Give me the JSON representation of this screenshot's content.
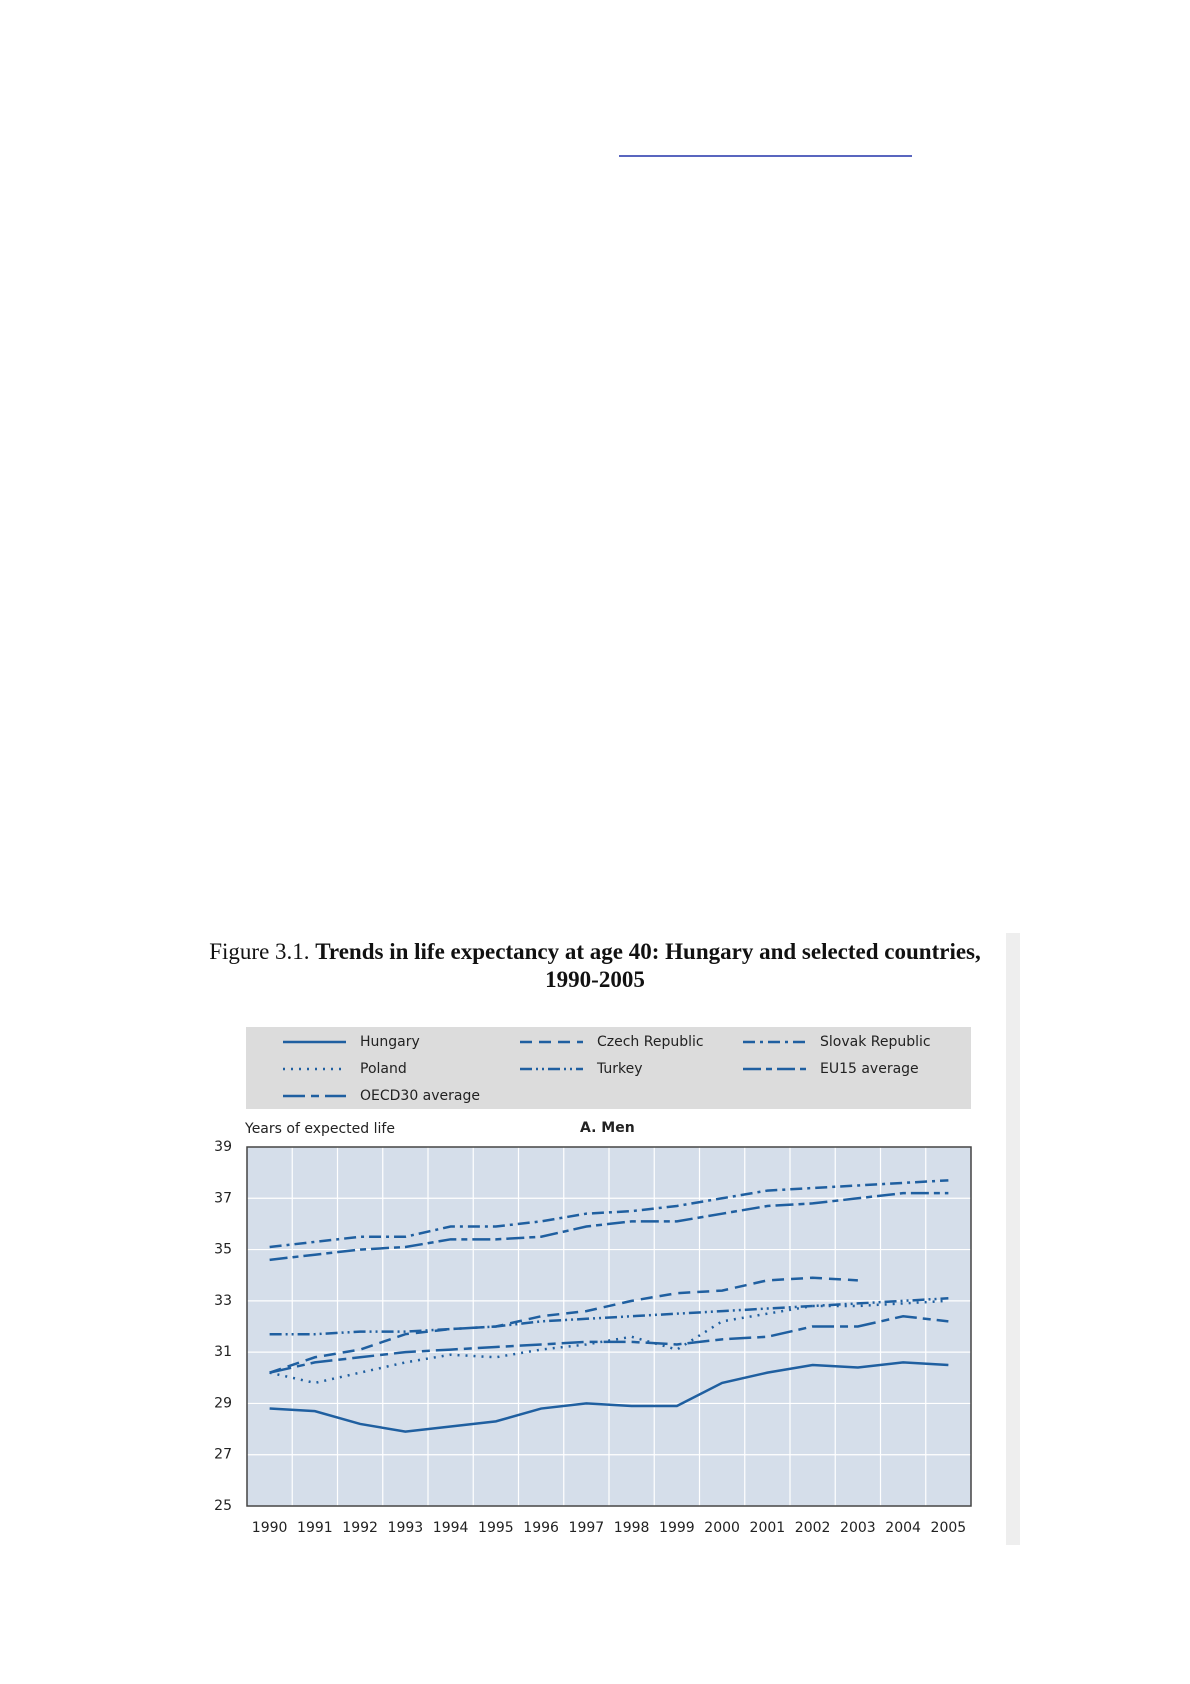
{
  "chart_data": {
    "type": "line",
    "title_label": "Figure 3.1.",
    "title": "Trends in life expectancy at age 40: Hungary and selected countries, 1990-2005",
    "subtitle": "A. Men",
    "y_label": "Years of expected life",
    "categories": [
      "1990",
      "1991",
      "1992",
      "1993",
      "1994",
      "1995",
      "1996",
      "1997",
      "1998",
      "1999",
      "2000",
      "2001",
      "2002",
      "2003",
      "2004",
      "2005"
    ],
    "ylim": [
      25,
      39
    ],
    "yticks": [
      25,
      27,
      29,
      31,
      33,
      35,
      37,
      39
    ],
    "grid": true,
    "series": [
      {
        "name": "Hungary",
        "color": "#1f5fa0",
        "dash": "none",
        "values": [
          28.8,
          28.7,
          28.2,
          27.9,
          28.1,
          28.3,
          28.8,
          29.0,
          28.9,
          28.9,
          29.8,
          30.2,
          30.5,
          30.4,
          30.6,
          30.5
        ]
      },
      {
        "name": "Czech Republic",
        "color": "#1f5fa0",
        "dash": "12 7",
        "values": [
          30.2,
          30.8,
          31.1,
          31.7,
          31.9,
          32.0,
          32.4,
          32.6,
          33.0,
          33.3,
          33.4,
          33.8,
          33.9,
          33.8,
          null,
          null
        ]
      },
      {
        "name": "Slovak Republic",
        "color": "#1f5fa0",
        "dash": "12 5 3 5",
        "values": [
          35.1,
          35.3,
          35.5,
          35.5,
          35.9,
          35.9,
          36.1,
          36.4,
          36.5,
          36.7,
          37.0,
          37.3,
          37.4,
          37.5,
          37.6,
          37.7
        ]
      },
      {
        "name": "Poland",
        "color": "#1f5fa0",
        "dash": "2 6",
        "values": [
          30.2,
          29.8,
          30.2,
          30.6,
          30.9,
          30.8,
          31.1,
          31.3,
          31.6,
          31.1,
          32.2,
          32.5,
          32.8,
          32.8,
          32.9,
          33.0
        ]
      },
      {
        "name": "Turkey",
        "color": "#1f5fa0",
        "dash": "12 4 2 4 2 4",
        "values": [
          31.7,
          31.7,
          31.8,
          31.8,
          31.9,
          32.0,
          32.2,
          32.3,
          32.4,
          32.5,
          32.6,
          32.7,
          32.8,
          32.9,
          33.0,
          33.1
        ]
      },
      {
        "name": "EU15 average",
        "color": "#1f5fa0",
        "dash": "18 5 6 5",
        "values": [
          34.6,
          34.8,
          35.0,
          35.1,
          35.4,
          35.4,
          35.5,
          35.9,
          36.1,
          36.1,
          36.4,
          36.7,
          36.8,
          37.0,
          37.2,
          37.2
        ]
      },
      {
        "name": "OECD30 average",
        "color": "#1f5fa0",
        "dash": "22 6 8 6",
        "values": [
          30.2,
          30.6,
          30.8,
          31.0,
          31.1,
          31.2,
          31.3,
          31.4,
          31.4,
          31.3,
          31.5,
          31.6,
          32.0,
          32.0,
          32.4,
          32.2
        ]
      }
    ]
  }
}
